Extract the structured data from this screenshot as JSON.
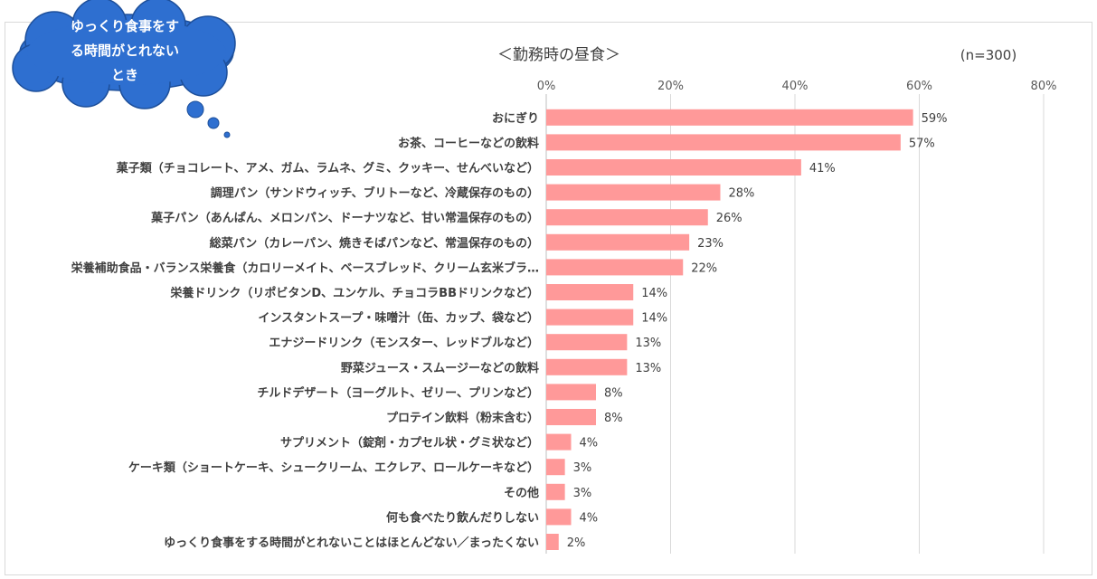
{
  "bubble": {
    "lines": [
      "ゆっくり食事をす",
      "る時間がとれない",
      "とき"
    ]
  },
  "chart_data": {
    "type": "bar",
    "orientation": "horizontal",
    "title": "＜勤務時の昼食＞",
    "sample_note": "(n=300)",
    "xlim": [
      0,
      80
    ],
    "x_ticks": [
      0,
      20,
      40,
      60,
      80
    ],
    "x_tick_labels": [
      "0%",
      "20%",
      "40%",
      "60%",
      "80%"
    ],
    "grid": true,
    "bar_color": "#ff9999",
    "categories": [
      "おにぎり",
      "お茶、コーヒーなどの飲料",
      "菓子類（チョコレート、アメ、ガム、ラムネ、グミ、クッキー、せんべいなど）",
      "調理パン（サンドウィッチ、ブリトーなど、冷蔵保存のもの）",
      "菓子パン（あんぱん、メロンパン、ドーナツなど、甘い常温保存のもの）",
      "総菜パン（カレーパン、焼きそばパンなど、常温保存のもの）",
      "栄養補助食品・バランス栄養食（カロリーメイト、ベースブレッド、クリーム玄米ブラ…",
      "栄養ドリンク（リポビタンD、ユンケル、チョコラBBドリンクなど）",
      "インスタントスープ・味噌汁（缶、カップ、袋など）",
      "エナジードリンク（モンスター、レッドブルなど）",
      "野菜ジュース・スムージーなどの飲料",
      "チルドデザート（ヨーグルト、ゼリー、プリンなど）",
      "プロテイン飲料（粉末含む）",
      "サプリメント（錠剤・カプセル状・グミ状など）",
      "ケーキ類（ショートケーキ、シュークリーム、エクレア、ロールケーキなど）",
      "その他",
      "何も食べたり飲んだりしない",
      "ゆっくり食事をする時間がとれないことはほとんどない／まったくない"
    ],
    "values": [
      59,
      57,
      41,
      28,
      26,
      23,
      22,
      14,
      14,
      13,
      13,
      8,
      8,
      4,
      3,
      3,
      4,
      2
    ],
    "value_labels": [
      "59%",
      "57%",
      "41%",
      "28%",
      "26%",
      "23%",
      "22%",
      "14%",
      "14%",
      "13%",
      "13%",
      "8%",
      "8%",
      "4%",
      "3%",
      "3%",
      "4%",
      "2%"
    ]
  }
}
